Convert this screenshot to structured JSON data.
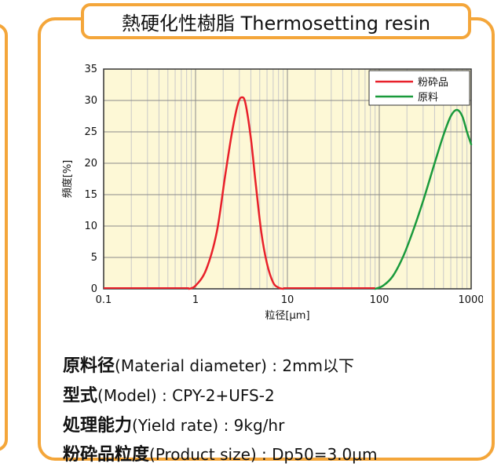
{
  "title": "熱硬化性樹脂 Thermosetting resin",
  "chart_data": {
    "type": "line",
    "xscale": "log",
    "xlim": [
      0.1,
      1000
    ],
    "ylim": [
      0,
      35
    ],
    "xticks": [
      "0.1",
      "1",
      "10",
      "100",
      "1000"
    ],
    "yticks": [
      "0",
      "5",
      "10",
      "15",
      "20",
      "25",
      "30",
      "35"
    ],
    "xlabel": "粒径[μm]",
    "ylabel": "頻度[%]",
    "grid": true,
    "legend_position": "top-right",
    "series": [
      {
        "name": "粉砕品",
        "color": "#e8202a",
        "x": [
          0.85,
          1.0,
          1.3,
          1.7,
          2.1,
          2.5,
          2.9,
          3.2,
          3.5,
          4.0,
          4.5,
          5.2,
          6.0,
          7.0,
          8.0,
          9.0
        ],
        "y": [
          0,
          0.5,
          3,
          9,
          18,
          25,
          29.5,
          30.5,
          29.5,
          24,
          17,
          9,
          4,
          1,
          0.2,
          0
        ]
      },
      {
        "name": "原料",
        "color": "#1a9a3c",
        "x": [
          90,
          110,
          140,
          180,
          230,
          300,
          400,
          500,
          600,
          700,
          800,
          900,
          1000
        ],
        "y": [
          0,
          0.5,
          2,
          5,
          9,
          14,
          20,
          24.5,
          27.5,
          28.5,
          27.5,
          25,
          23
        ]
      }
    ]
  },
  "info": [
    {
      "jp": "原料径",
      "text": "(Material diameter) : 2mm以下"
    },
    {
      "jp": "型式",
      "text": "(Model) : CPY-2+UFS-2"
    },
    {
      "jp": "処理能力",
      "text": "(Yield rate) : 9kg/hr"
    },
    {
      "jp": "粉砕品粒度",
      "text": "(Product size) : Dp50=3.0μm"
    }
  ]
}
